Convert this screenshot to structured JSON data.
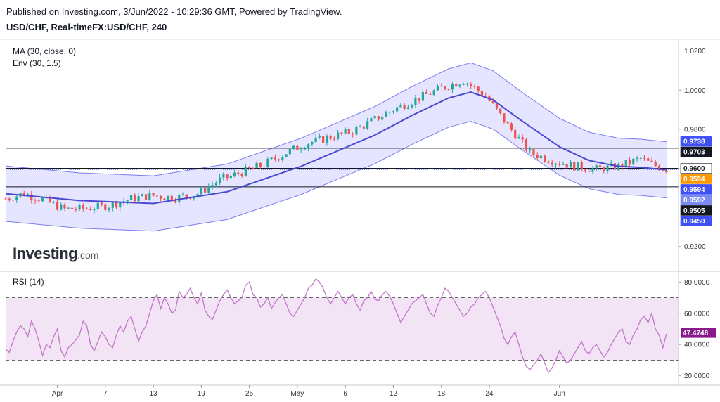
{
  "header": {
    "published": "Published on Investing.com, 3/Jun/2022 - 10:29:36 GMT, Powered by TradingView.",
    "symbol": "USD/CHF, Real-timeFX:USD/CHF, 240"
  },
  "watermark": {
    "brand": "Investing",
    "suffix": ".com"
  },
  "colors": {
    "up": "#26a69a",
    "down": "#ef5350",
    "ma": "#4a4ad0",
    "band_fill": "#dcdcff",
    "band_line": "#7b7bf0",
    "rsi_line": "#c177c9",
    "rsi_fill": "#f3e4f5",
    "rsi_tag": "#8a1a8a",
    "level_line": "#131722"
  },
  "chart_data": [
    {
      "type": "candlestick",
      "title": "USD/CHF, Real-timeFX:USD/CHF, 240",
      "indicators": [
        "MA (30, close, 0)",
        "Env (30, 1.5)"
      ],
      "ylim": [
        0.908,
        1.026
      ],
      "y_ticks": [
        "1.0200",
        "1.0000",
        "0.9800",
        "0.9200"
      ],
      "x_ticks": [
        "Apr",
        "7",
        "13",
        "19",
        "25",
        "May",
        "6",
        "12",
        "18",
        "24",
        "Jun"
      ],
      "horizontal_levels": [
        0.9703,
        0.96,
        0.9505
      ],
      "price_tags": [
        {
          "label": "0.9738",
          "value": 0.9738,
          "bg": "#3f51f5",
          "fg": "#ffffff"
        },
        {
          "label": "0.9703",
          "value": 0.9703,
          "bg": "#131722",
          "fg": "#ffffff"
        },
        {
          "label": "0.9600",
          "value": 0.96,
          "bg": "#ffffff",
          "fg": "#131722"
        },
        {
          "label": "0.9594",
          "value": 0.9594,
          "bg": "#ff9800",
          "fg": "#ffffff"
        },
        {
          "label": "0.9594",
          "value": 0.9594,
          "bg": "#3f51f5",
          "fg": "#ffffff"
        },
        {
          "label": "0.9592",
          "value": 0.9592,
          "bg": "#7b8af0",
          "fg": "#ffffff"
        },
        {
          "label": "0.9505",
          "value": 0.9505,
          "bg": "#131722",
          "fg": "#ffffff"
        },
        {
          "label": "0.9450",
          "value": 0.945,
          "bg": "#3f51f5",
          "fg": "#ffffff"
        }
      ],
      "close_path": [
        [
          0,
          0.9445
        ],
        [
          5,
          0.947
        ],
        [
          10,
          0.944
        ],
        [
          16,
          0.939
        ],
        [
          22,
          0.9395
        ],
        [
          28,
          0.941
        ],
        [
          34,
          0.9445
        ],
        [
          40,
          0.946
        ],
        [
          46,
          0.945
        ],
        [
          52,
          0.947
        ],
        [
          58,
          0.954
        ],
        [
          64,
          0.958
        ],
        [
          70,
          0.962
        ],
        [
          76,
          0.968
        ],
        [
          82,
          0.973
        ],
        [
          88,
          0.976
        ],
        [
          94,
          0.979
        ],
        [
          100,
          0.985
        ],
        [
          106,
          0.991
        ],
        [
          112,
          0.996
        ],
        [
          118,
          1.001
        ],
        [
          124,
          1.005
        ],
        [
          130,
          0.997
        ],
        [
          136,
          0.982
        ],
        [
          142,
          0.968
        ],
        [
          148,
          0.964
        ],
        [
          154,
          0.961
        ],
        [
          160,
          0.9595
        ],
        [
          166,
          0.961
        ],
        [
          172,
          0.965
        ],
        [
          175,
          0.962
        ],
        [
          179,
          0.9594
        ]
      ],
      "ma_path": [
        [
          0,
          0.947
        ],
        [
          20,
          0.9435
        ],
        [
          40,
          0.942
        ],
        [
          60,
          0.948
        ],
        [
          80,
          0.961
        ],
        [
          100,
          0.977
        ],
        [
          110,
          0.987
        ],
        [
          120,
          0.996
        ],
        [
          126,
          0.999
        ],
        [
          132,
          0.995
        ],
        [
          140,
          0.984
        ],
        [
          150,
          0.971
        ],
        [
          158,
          0.964
        ],
        [
          166,
          0.961
        ],
        [
          172,
          0.9605
        ],
        [
          179,
          0.9592
        ]
      ],
      "envelope_width": 0.015,
      "candle_count": 180
    },
    {
      "type": "line",
      "title": "RSI (14)",
      "ylim": [
        14,
        86
      ],
      "y_ticks": [
        "80.0000",
        "60.0000",
        "40.0000",
        "20.0000"
      ],
      "band": [
        30,
        70
      ],
      "current_label": "47.4748",
      "current_value": 47.4748,
      "values": [
        37,
        35,
        42,
        48,
        52,
        50,
        45,
        55,
        50,
        42,
        33,
        40,
        38,
        45,
        50,
        36,
        32,
        38,
        40,
        43,
        46,
        55,
        52,
        40,
        36,
        42,
        48,
        45,
        40,
        38,
        46,
        52,
        48,
        55,
        58,
        50,
        42,
        48,
        52,
        60,
        68,
        72,
        63,
        70,
        66,
        60,
        62,
        74,
        70,
        72,
        76,
        70,
        66,
        73,
        62,
        58,
        56,
        62,
        68,
        72,
        75,
        70,
        66,
        68,
        70,
        78,
        80,
        72,
        70,
        64,
        66,
        70,
        63,
        67,
        70,
        72,
        66,
        60,
        58,
        62,
        66,
        70,
        76,
        78,
        82,
        80,
        76,
        70,
        66,
        70,
        74,
        70,
        66,
        70,
        72,
        66,
        62,
        68,
        70,
        74,
        69,
        68,
        72,
        74,
        71,
        66,
        60,
        54,
        58,
        62,
        66,
        68,
        70,
        72,
        66,
        60,
        58,
        65,
        70,
        76,
        74,
        70,
        66,
        62,
        58,
        60,
        64,
        66,
        70,
        72,
        74,
        70,
        64,
        58,
        52,
        44,
        40,
        45,
        48,
        40,
        32,
        26,
        24,
        27,
        30,
        34,
        28,
        22,
        25,
        30,
        36,
        32,
        28,
        30,
        34,
        38,
        42,
        36,
        34,
        38,
        40,
        36,
        32,
        35,
        40,
        44,
        48,
        50,
        42,
        40,
        46,
        50,
        56,
        58,
        54,
        60,
        50,
        46,
        38,
        47
      ]
    }
  ]
}
